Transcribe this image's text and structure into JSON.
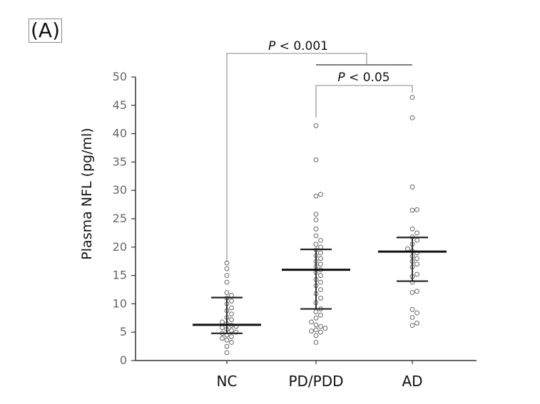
{
  "panel_label": "(A)",
  "chart_data": {
    "type": "scatter",
    "categories": [
      "NC",
      "PD/PDD",
      "AD"
    ],
    "ylabel": "Plasma NFL (pg/ml)",
    "ylim": [
      0,
      50
    ],
    "yticks": [
      0,
      5,
      10,
      15,
      20,
      25,
      30,
      35,
      40,
      45,
      50
    ],
    "grid": false,
    "groups": [
      {
        "name": "NC",
        "median": 6.3,
        "q1": 4.8,
        "q3": 11.1,
        "points": [
          1.4,
          2.5,
          3.2,
          3.6,
          3.9,
          4.2,
          4.5,
          4.8,
          5.0,
          5.3,
          5.5,
          5.8,
          6.0,
          6.2,
          6.5,
          6.8,
          7.2,
          7.6,
          8.2,
          8.8,
          9.3,
          10.0,
          10.5,
          11.0,
          11.5,
          12.0,
          13.8,
          15.0,
          16.2,
          17.2
        ]
      },
      {
        "name": "PD/PDD",
        "median": 16.0,
        "q1": 9.1,
        "q3": 19.6,
        "points": [
          3.2,
          4.4,
          5.0,
          5.2,
          5.4,
          5.7,
          6.0,
          6.3,
          6.8,
          7.5,
          8.0,
          8.6,
          9.1,
          10.2,
          11.0,
          11.8,
          12.5,
          13.2,
          13.8,
          14.3,
          15.0,
          15.5,
          16.0,
          16.6,
          17.0,
          17.5,
          18.0,
          18.5,
          19.0,
          19.5,
          20.0,
          20.5,
          21.2,
          22.0,
          23.2,
          24.8,
          25.8,
          29.0,
          29.3,
          35.4,
          41.4
        ]
      },
      {
        "name": "AD",
        "median": 19.2,
        "q1": 14.0,
        "q3": 21.7,
        "points": [
          6.2,
          6.6,
          7.6,
          8.4,
          9.0,
          12.0,
          12.2,
          13.8,
          14.8,
          15.2,
          16.5,
          17.0,
          17.5,
          18.0,
          18.4,
          19.0,
          19.3,
          19.7,
          20.5,
          21.2,
          21.8,
          22.5,
          23.2,
          26.5,
          26.6,
          30.6,
          42.8,
          46.4
        ]
      }
    ],
    "annotations": [
      {
        "label_italic": "P",
        "label_rest": " < 0.001",
        "from": "NC",
        "to": "PD/PDD+AD"
      },
      {
        "label_italic": "P",
        "label_rest": " < 0.05",
        "from": "PD/PDD",
        "to": "AD"
      }
    ]
  }
}
